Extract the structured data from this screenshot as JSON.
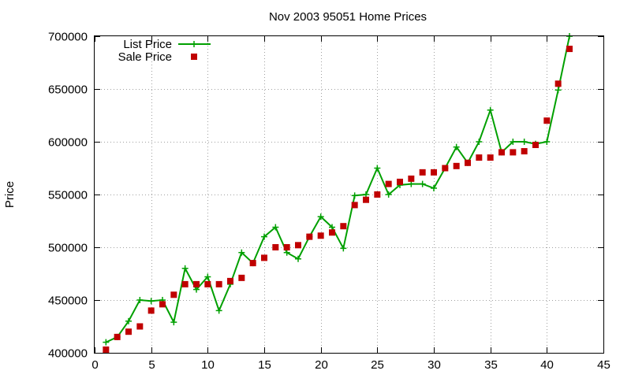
{
  "chart_data": {
    "type": "line",
    "title": "Nov 2003 95051 Home Prices",
    "xlabel": "",
    "ylabel": "Price",
    "xlim": [
      0,
      45
    ],
    "ylim": [
      400000,
      700000
    ],
    "xticks": [
      0,
      5,
      10,
      15,
      20,
      25,
      30,
      35,
      40,
      45
    ],
    "yticks": [
      400000,
      450000,
      500000,
      550000,
      600000,
      650000,
      700000
    ],
    "grid": true,
    "legend_position": "top-left",
    "series": [
      {
        "name": "List Price",
        "style": "line-plus",
        "color": "#00a000",
        "x": [
          1,
          2,
          3,
          4,
          5,
          6,
          7,
          8,
          9,
          10,
          11,
          12,
          13,
          14,
          15,
          16,
          17,
          18,
          19,
          20,
          21,
          22,
          23,
          24,
          25,
          26,
          27,
          28,
          29,
          30,
          31,
          32,
          33,
          34,
          35,
          36,
          37,
          38,
          39,
          40,
          41,
          42
        ],
        "y": [
          410000,
          415000,
          430000,
          450000,
          449000,
          450000,
          429000,
          480000,
          460000,
          472000,
          440000,
          465000,
          495000,
          485000,
          510000,
          519000,
          495000,
          489000,
          510000,
          529000,
          519000,
          499000,
          549000,
          550000,
          575000,
          550000,
          559000,
          560000,
          560000,
          556000,
          575000,
          595000,
          580000,
          600000,
          630000,
          590000,
          600000,
          600000,
          598000,
          600000,
          649000,
          700000
        ]
      },
      {
        "name": "Sale Price",
        "style": "square",
        "color": "#c00000",
        "x": [
          1,
          2,
          3,
          4,
          5,
          6,
          7,
          8,
          9,
          10,
          11,
          12,
          13,
          14,
          15,
          16,
          17,
          18,
          19,
          20,
          21,
          22,
          23,
          24,
          25,
          26,
          27,
          28,
          29,
          30,
          31,
          32,
          33,
          34,
          35,
          36,
          37,
          38,
          39,
          40,
          41,
          42
        ],
        "y": [
          403000,
          415000,
          420000,
          425000,
          440000,
          446000,
          455000,
          465000,
          465000,
          465000,
          465000,
          468000,
          471000,
          485000,
          490000,
          500000,
          500000,
          502000,
          510000,
          511000,
          514000,
          520000,
          540000,
          545000,
          550000,
          560000,
          562000,
          565000,
          571000,
          571000,
          575000,
          577000,
          580000,
          585000,
          585000,
          590000,
          590000,
          591000,
          597000,
          620000,
          655000,
          688000
        ]
      }
    ]
  }
}
